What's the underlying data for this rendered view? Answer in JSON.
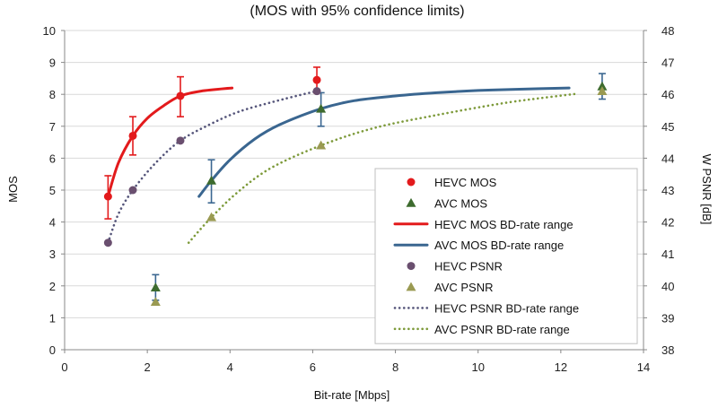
{
  "chart_data": {
    "type": "scatter",
    "title": "(MOS with 95% confidence limits)",
    "xlabel": "Bit-rate [Mbps]",
    "ylabel": "MOS",
    "y2label": "W PSNR [dB]",
    "xlim": [
      0,
      14
    ],
    "ylim": [
      0,
      10
    ],
    "y2lim": [
      38,
      48
    ],
    "xticks": [
      "0",
      "2",
      "4",
      "6",
      "8",
      "10",
      "12",
      "14"
    ],
    "yticks": [
      "0",
      "1",
      "2",
      "3",
      "4",
      "5",
      "6",
      "7",
      "8",
      "9",
      "10"
    ],
    "y2ticks": [
      "38",
      "39",
      "40",
      "41",
      "42",
      "43",
      "44",
      "45",
      "46",
      "47",
      "48"
    ],
    "grid": "horizontal",
    "legend_position": "lower-right",
    "series": [
      {
        "name": "HEVC MOS",
        "kind": "markers",
        "marker": "circle",
        "color": "#e31a1c",
        "axis": "left",
        "points": [
          {
            "x": 1.05,
            "y": 4.8,
            "lo": 4.1,
            "hi": 5.45
          },
          {
            "x": 1.65,
            "y": 6.7,
            "lo": 6.1,
            "hi": 7.3
          },
          {
            "x": 2.8,
            "y": 7.95,
            "lo": 7.3,
            "hi": 8.55
          },
          {
            "x": 6.1,
            "y": 8.45,
            "lo": 8.05,
            "hi": 8.85
          }
        ]
      },
      {
        "name": "AVC MOS",
        "kind": "markers",
        "marker": "triangle",
        "color": "#3d6b2e",
        "axis": "left",
        "points": [
          {
            "x": 2.2,
            "y": 1.95,
            "lo": 1.55,
            "hi": 2.35
          },
          {
            "x": 3.55,
            "y": 5.3,
            "lo": 4.6,
            "hi": 5.95
          },
          {
            "x": 6.2,
            "y": 7.55,
            "lo": 7.0,
            "hi": 8.05
          },
          {
            "x": 13.0,
            "y": 8.25,
            "lo": 7.85,
            "hi": 8.65
          }
        ]
      },
      {
        "name": "HEVC MOS BD-rate range",
        "kind": "line",
        "style": "solid",
        "color": "#e31a1c",
        "axis": "left",
        "x": [
          1.05,
          1.3,
          1.65,
          2.0,
          2.4,
          2.8,
          3.3,
          4.05
        ],
        "y": [
          4.8,
          5.85,
          6.7,
          7.25,
          7.65,
          7.95,
          8.1,
          8.2
        ]
      },
      {
        "name": "AVC MOS BD-rate range",
        "kind": "line",
        "style": "solid",
        "color": "#3a6690",
        "axis": "left",
        "x": [
          3.25,
          3.55,
          4.0,
          4.6,
          5.2,
          6.2,
          7.0,
          8.0,
          9.0,
          10.0,
          11.0,
          12.2
        ],
        "y": [
          4.8,
          5.3,
          5.95,
          6.6,
          7.05,
          7.55,
          7.8,
          7.95,
          8.05,
          8.12,
          8.16,
          8.2
        ]
      },
      {
        "name": "HEVC PSNR",
        "kind": "markers",
        "marker": "circle",
        "color": "#6a4f6f",
        "axis": "right",
        "points": [
          {
            "x": 1.05,
            "y": 41.35
          },
          {
            "x": 1.65,
            "y": 43.0
          },
          {
            "x": 2.8,
            "y": 44.55
          },
          {
            "x": 6.1,
            "y": 46.1
          }
        ]
      },
      {
        "name": "AVC PSNR",
        "kind": "markers",
        "marker": "triangle",
        "color": "#9a9a52",
        "axis": "right",
        "points": [
          {
            "x": 2.2,
            "y": 39.5
          },
          {
            "x": 3.55,
            "y": 42.15
          },
          {
            "x": 6.2,
            "y": 44.4
          },
          {
            "x": 13.0,
            "y": 46.1
          }
        ]
      },
      {
        "name": "HEVC PSNR BD-rate range",
        "kind": "line",
        "style": "dotted",
        "color": "#55557a",
        "axis": "right",
        "x": [
          1.05,
          1.3,
          1.65,
          2.2,
          2.8,
          3.5,
          4.2,
          5.0,
          5.7,
          6.1
        ],
        "y": [
          41.35,
          42.25,
          43.0,
          43.85,
          44.55,
          45.05,
          45.45,
          45.75,
          45.98,
          46.1
        ]
      },
      {
        "name": "AVC PSNR BD-rate range",
        "kind": "line",
        "style": "dotted",
        "color": "#7d9a3a",
        "axis": "right",
        "x": [
          3.0,
          3.55,
          4.2,
          5.0,
          6.2,
          7.5,
          9.0,
          10.5,
          11.5,
          12.4
        ],
        "y": [
          41.35,
          42.15,
          42.95,
          43.7,
          44.4,
          44.95,
          45.35,
          45.7,
          45.88,
          46.02
        ]
      }
    ]
  }
}
